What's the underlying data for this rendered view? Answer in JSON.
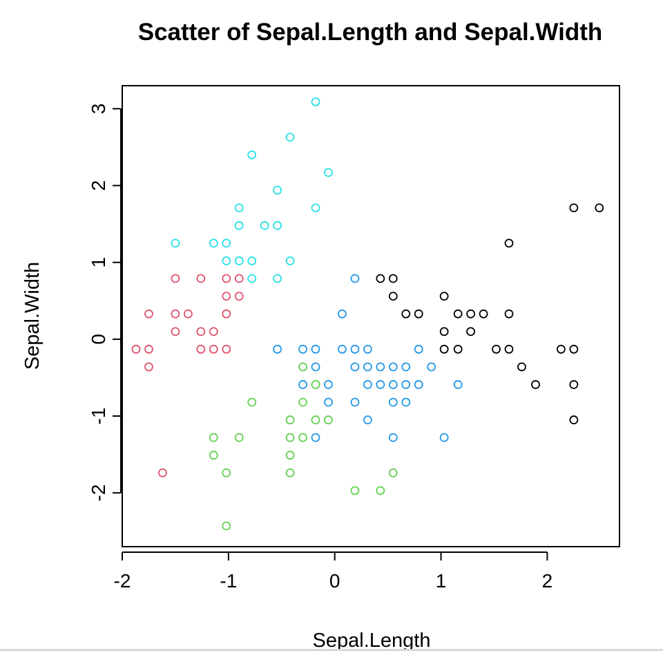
{
  "chart_data": {
    "type": "scatter",
    "title": "Scatter of  Sepal.Length and Sepal.Width",
    "xlabel": "Sepal.Length",
    "ylabel": "Sepal.Width",
    "xlim": [
      -2.0,
      2.68
    ],
    "ylim": [
      -2.7,
      3.3
    ],
    "x_ticks": [
      -2,
      -1,
      0,
      1,
      2
    ],
    "y_ticks": [
      -2,
      -1,
      0,
      1,
      2,
      3
    ],
    "x_tick_labels": [
      "-2",
      "-1",
      "0",
      "1",
      "2"
    ],
    "y_tick_labels": [
      "-2",
      "-1",
      "0",
      "1",
      "2",
      "3"
    ],
    "grid": false,
    "marker": "open-circle",
    "series": [
      {
        "color": "#DF536B",
        "points": [
          [
            -1.87,
            -0.13
          ],
          [
            -1.75,
            -0.13
          ],
          [
            -1.75,
            -0.36
          ],
          [
            -1.75,
            0.33
          ],
          [
            -1.62,
            -1.74
          ],
          [
            -1.5,
            0.79
          ],
          [
            -1.5,
            0.33
          ],
          [
            -1.5,
            0.1
          ],
          [
            -1.38,
            0.33
          ],
          [
            -1.26,
            0.79
          ],
          [
            -1.26,
            0.1
          ],
          [
            -1.26,
            -0.13
          ],
          [
            -1.14,
            0.1
          ],
          [
            -1.14,
            -0.13
          ],
          [
            -1.02,
            0.79
          ],
          [
            -1.02,
            0.56
          ],
          [
            -1.02,
            0.33
          ],
          [
            -1.02,
            -0.13
          ],
          [
            -0.9,
            0.79
          ],
          [
            -0.9,
            0.56
          ]
        ]
      },
      {
        "color": "#61D04F",
        "points": [
          [
            -1.14,
            -1.28
          ],
          [
            -1.14,
            -1.51
          ],
          [
            -1.02,
            -1.74
          ],
          [
            -1.02,
            -2.43
          ],
          [
            -0.9,
            -1.28
          ],
          [
            -0.78,
            -0.82
          ],
          [
            -0.42,
            -1.05
          ],
          [
            -0.42,
            -1.28
          ],
          [
            -0.42,
            -1.51
          ],
          [
            -0.42,
            -1.74
          ],
          [
            -0.3,
            -0.36
          ],
          [
            -0.3,
            -0.82
          ],
          [
            -0.3,
            -1.28
          ],
          [
            -0.18,
            -0.59
          ],
          [
            -0.18,
            -1.05
          ],
          [
            -0.06,
            -1.05
          ],
          [
            0.19,
            -1.97
          ],
          [
            0.43,
            -1.97
          ],
          [
            0.55,
            -1.74
          ]
        ]
      },
      {
        "color": "#2297E6",
        "points": [
          [
            -0.54,
            -0.13
          ],
          [
            -0.3,
            -0.13
          ],
          [
            -0.3,
            -0.59
          ],
          [
            -0.18,
            -0.13
          ],
          [
            -0.18,
            -0.36
          ],
          [
            -0.18,
            -1.28
          ],
          [
            -0.06,
            -0.59
          ],
          [
            -0.06,
            -0.82
          ],
          [
            0.07,
            0.33
          ],
          [
            0.07,
            -0.13
          ],
          [
            0.19,
            0.79
          ],
          [
            0.19,
            -0.13
          ],
          [
            0.19,
            -0.36
          ],
          [
            0.19,
            -0.82
          ],
          [
            0.31,
            -0.13
          ],
          [
            0.31,
            -0.36
          ],
          [
            0.31,
            -0.59
          ],
          [
            0.31,
            -1.05
          ],
          [
            0.43,
            -0.36
          ],
          [
            0.43,
            -0.59
          ],
          [
            0.55,
            -0.36
          ],
          [
            0.55,
            -0.59
          ],
          [
            0.55,
            -0.82
          ],
          [
            0.55,
            -1.28
          ],
          [
            0.67,
            -0.36
          ],
          [
            0.67,
            -0.59
          ],
          [
            0.67,
            -0.82
          ],
          [
            0.79,
            -0.59
          ],
          [
            0.79,
            -0.13
          ],
          [
            0.91,
            -0.36
          ],
          [
            1.16,
            -0.59
          ],
          [
            1.03,
            -1.28
          ]
        ]
      },
      {
        "color": "#28E2E5",
        "points": [
          [
            -0.18,
            3.09
          ],
          [
            -0.42,
            2.63
          ],
          [
            -0.78,
            2.4
          ],
          [
            -0.06,
            2.17
          ],
          [
            -0.54,
            1.94
          ],
          [
            -0.9,
            1.71
          ],
          [
            -0.18,
            1.71
          ],
          [
            -0.9,
            1.48
          ],
          [
            -0.66,
            1.48
          ],
          [
            -0.54,
            1.48
          ],
          [
            -1.5,
            1.25
          ],
          [
            -1.14,
            1.25
          ],
          [
            -1.02,
            1.25
          ],
          [
            -1.02,
            1.02
          ],
          [
            -0.9,
            1.02
          ],
          [
            -0.78,
            1.02
          ],
          [
            -0.42,
            1.02
          ],
          [
            -0.78,
            0.79
          ],
          [
            -0.54,
            0.79
          ]
        ]
      },
      {
        "color": "#000000",
        "points": [
          [
            0.43,
            0.79
          ],
          [
            0.55,
            0.79
          ],
          [
            0.55,
            0.56
          ],
          [
            0.67,
            0.33
          ],
          [
            0.79,
            0.33
          ],
          [
            1.03,
            0.56
          ],
          [
            1.03,
            0.1
          ],
          [
            1.03,
            -0.13
          ],
          [
            1.16,
            0.33
          ],
          [
            1.16,
            -0.13
          ],
          [
            1.28,
            0.33
          ],
          [
            1.28,
            0.1
          ],
          [
            1.4,
            0.33
          ],
          [
            1.52,
            -0.13
          ],
          [
            1.64,
            1.25
          ],
          [
            1.64,
            0.33
          ],
          [
            1.64,
            -0.13
          ],
          [
            1.76,
            -0.36
          ],
          [
            1.89,
            -0.59
          ],
          [
            2.13,
            -0.13
          ],
          [
            2.25,
            1.71
          ],
          [
            2.25,
            -0.13
          ],
          [
            2.25,
            -0.59
          ],
          [
            2.25,
            -1.05
          ],
          [
            2.49,
            1.71
          ]
        ]
      }
    ]
  }
}
